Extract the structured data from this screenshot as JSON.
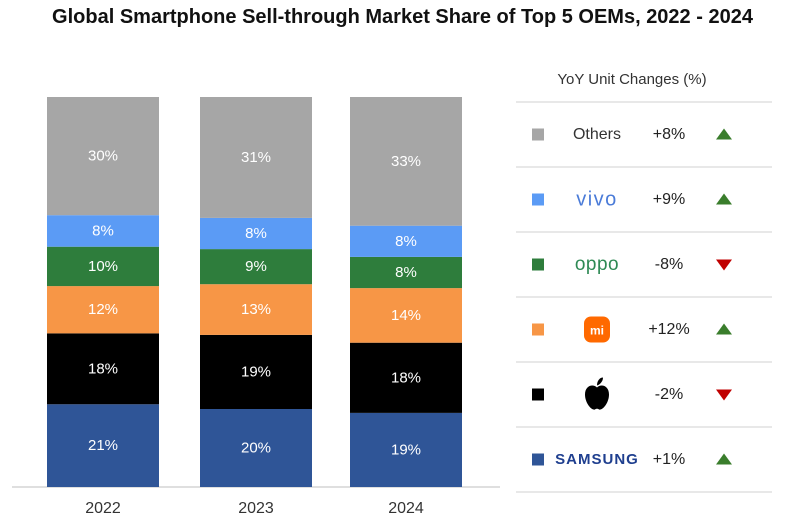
{
  "chart_data": {
    "type": "bar",
    "stacked": true,
    "title": "Global Smartphone Sell-through Market Share of Top 5 OEMs, 2022 - 2024",
    "xlabel": "",
    "ylabel": "",
    "ylim": [
      0,
      100
    ],
    "categories": [
      "2022",
      "2023",
      "2024"
    ],
    "series": [
      {
        "name": "Samsung",
        "color": "#2f5597",
        "values": [
          21,
          20,
          19
        ],
        "labels": [
          "21%",
          "20%",
          "19%"
        ]
      },
      {
        "name": "Apple",
        "color": "#000000",
        "values": [
          18,
          19,
          18
        ],
        "labels": [
          "18%",
          "19%",
          "18%"
        ]
      },
      {
        "name": "Xiaomi",
        "color": "#f79646",
        "values": [
          12,
          13,
          14
        ],
        "labels": [
          "12%",
          "13%",
          "14%"
        ]
      },
      {
        "name": "OPPO",
        "color": "#2e7d3c",
        "values": [
          10,
          9,
          8
        ],
        "labels": [
          "10%",
          "9%",
          "8%"
        ]
      },
      {
        "name": "vivo",
        "color": "#5b9bf5",
        "values": [
          8,
          8,
          8
        ],
        "labels": [
          "8%",
          "8%",
          "8%"
        ]
      },
      {
        "name": "Others",
        "color": "#a6a6a6",
        "values": [
          30,
          31,
          33
        ],
        "labels": [
          "30%",
          "31%",
          "33%"
        ]
      }
    ],
    "legend": {
      "title": "YoY Unit Changes (%)",
      "placement": "right",
      "items": [
        {
          "name": "Others",
          "logo": "text",
          "logo_text": "Others",
          "change": "+8%",
          "direction": "up",
          "color": "#a6a6a6"
        },
        {
          "name": "vivo",
          "logo": "vivo-logo",
          "logo_text": "vivo",
          "change": "+9%",
          "direction": "up",
          "color": "#5b9bf5"
        },
        {
          "name": "OPPO",
          "logo": "oppo-logo",
          "logo_text": "oppo",
          "change": "-8%",
          "direction": "down",
          "color": "#2e7d3c"
        },
        {
          "name": "Xiaomi",
          "logo": "xiaomi-logo",
          "logo_text": "mi",
          "change": "+12%",
          "direction": "up",
          "color": "#f79646"
        },
        {
          "name": "Apple",
          "logo": "apple-logo",
          "logo_text": "",
          "change": "-2%",
          "direction": "down",
          "color": "#000000"
        },
        {
          "name": "Samsung",
          "logo": "samsung-logo",
          "logo_text": "SAMSUNG",
          "change": "+1%",
          "direction": "up",
          "color": "#2f5597"
        }
      ]
    }
  },
  "colors": {
    "up": "#3a7d2c",
    "down": "#c00000",
    "separator": "#d0d0d0"
  }
}
